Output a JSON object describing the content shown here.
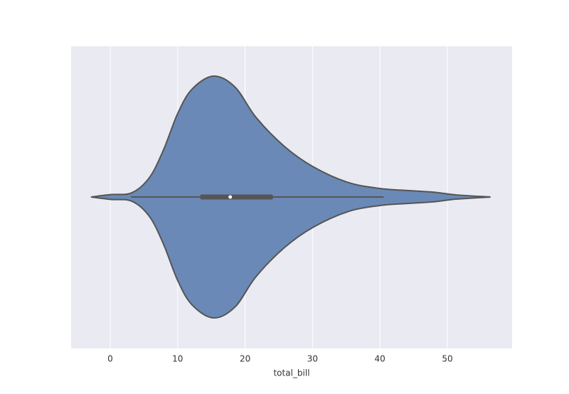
{
  "chart_data": {
    "type": "violin",
    "xlabel": "total_bill",
    "x": [
      -2.85,
      0,
      3.2,
      5.8,
      7.9,
      10,
      12.1,
      15.3,
      18.5,
      21.6,
      25.8,
      30.1,
      35.3,
      40.1,
      44.3,
      48,
      51.2,
      56.4
    ],
    "density": [
      0,
      0.02,
      0.035,
      0.16,
      0.39,
      0.69,
      0.89,
      1.0,
      0.91,
      0.66,
      0.42,
      0.25,
      0.12,
      0.07,
      0.053,
      0.04,
      0.018,
      0
    ],
    "box": {
      "whisker_low": 3.07,
      "q1": 13.35,
      "median": 17.8,
      "q3": 24.13,
      "whisker_high": 40.55
    },
    "color": "#6a89b6",
    "xlim": [
      -5.8,
      59.6
    ],
    "xticks": [
      0,
      10,
      20,
      30,
      40,
      50
    ],
    "grid": true
  }
}
